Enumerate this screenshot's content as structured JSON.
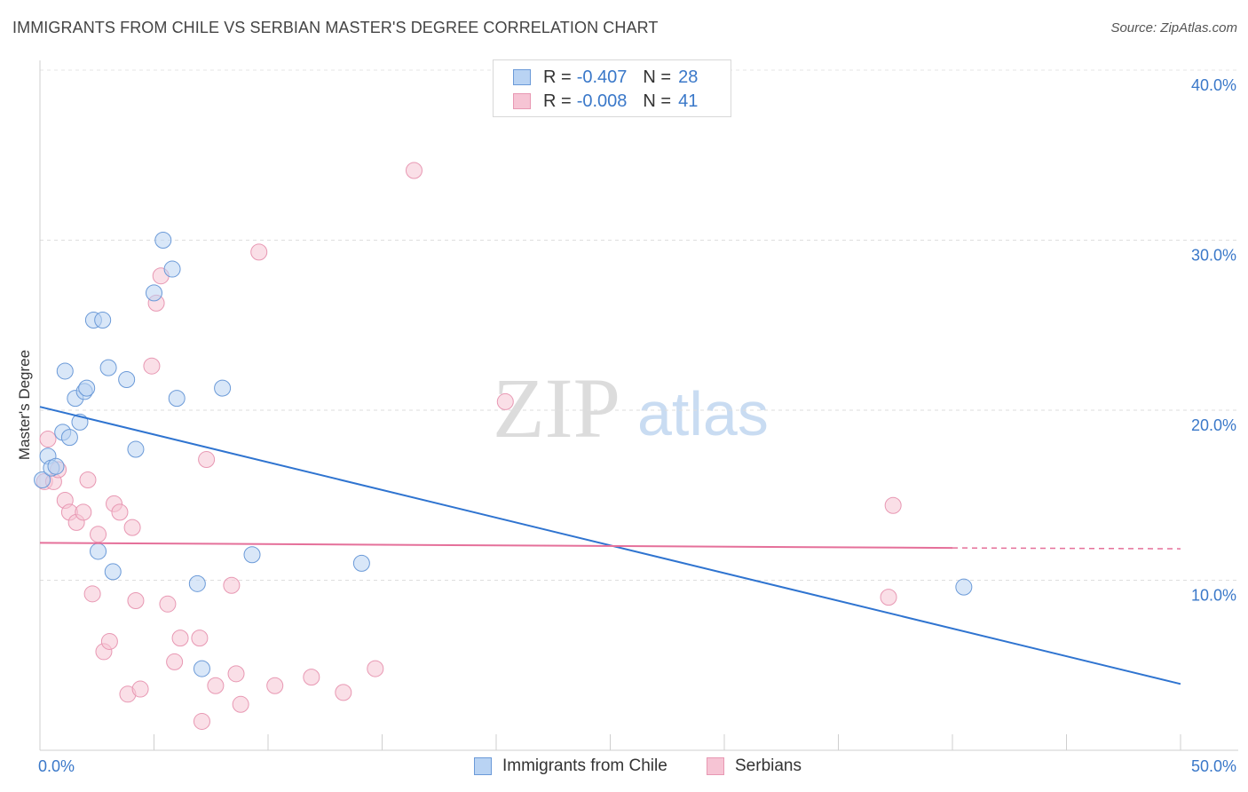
{
  "title": "IMMIGRANTS FROM CHILE VS SERBIAN MASTER'S DEGREE CORRELATION CHART",
  "source": "Source: ZipAtlas.com",
  "watermark_zip": "ZIP",
  "watermark_atlas": "atlas",
  "colors": {
    "blue": "#2f74d0",
    "blue_fill": "#b9d3f3",
    "pink": "#e5709a",
    "pink_fill": "#f6c4d4",
    "tick_text": "#3a78c9"
  },
  "legend": {
    "rows": [
      {
        "r_label": "R =",
        "r_value": "-0.407",
        "n_label": "N =",
        "n_value": "28"
      },
      {
        "r_label": "R =",
        "r_value": "-0.008",
        "n_label": "N =",
        "n_value": "41"
      }
    ]
  },
  "bottom_legend": {
    "chile": "Immigrants from Chile",
    "serbians": "Serbians"
  },
  "chart_data": {
    "type": "scatter",
    "title": "IMMIGRANTS FROM CHILE VS SERBIAN MASTER'S DEGREE CORRELATION CHART",
    "xlabel": "",
    "ylabel": "Master's Degree",
    "xlim": [
      0,
      50
    ],
    "ylim": [
      0,
      42
    ],
    "x_tick_labels": [
      "0.0%",
      "50.0%"
    ],
    "y_ticks": [
      10,
      20,
      30,
      40
    ],
    "y_tick_labels": [
      "10.0%",
      "20.0%",
      "30.0%",
      "40.0%"
    ],
    "grid": true,
    "series": [
      {
        "name": "Immigrants from Chile",
        "points": [
          [
            0.1,
            15.9
          ],
          [
            0.35,
            17.3
          ],
          [
            0.5,
            16.6
          ],
          [
            0.7,
            16.7
          ],
          [
            1.0,
            18.7
          ],
          [
            1.1,
            22.3
          ],
          [
            1.3,
            18.4
          ],
          [
            1.55,
            20.7
          ],
          [
            1.75,
            19.3
          ],
          [
            1.95,
            21.1
          ],
          [
            2.05,
            21.3
          ],
          [
            2.35,
            25.3
          ],
          [
            2.55,
            11.7
          ],
          [
            2.75,
            25.3
          ],
          [
            3.0,
            22.5
          ],
          [
            3.2,
            10.5
          ],
          [
            3.8,
            21.8
          ],
          [
            4.2,
            17.7
          ],
          [
            5.0,
            26.9
          ],
          [
            5.4,
            30.0
          ],
          [
            5.8,
            28.3
          ],
          [
            6.0,
            20.7
          ],
          [
            6.9,
            9.8
          ],
          [
            8.0,
            21.3
          ],
          [
            9.3,
            11.5
          ],
          [
            7.1,
            4.8
          ],
          [
            14.1,
            11.0
          ],
          [
            40.5,
            9.6
          ]
        ],
        "trend": {
          "x": [
            0,
            50
          ],
          "y": [
            20.2,
            3.9
          ]
        }
      },
      {
        "name": "Serbians",
        "points": [
          [
            0.2,
            15.8
          ],
          [
            0.35,
            18.3
          ],
          [
            0.6,
            15.8
          ],
          [
            0.8,
            16.5
          ],
          [
            1.1,
            14.7
          ],
          [
            1.3,
            14.0
          ],
          [
            1.6,
            13.4
          ],
          [
            1.9,
            14.0
          ],
          [
            2.1,
            15.9
          ],
          [
            2.3,
            9.2
          ],
          [
            2.55,
            12.7
          ],
          [
            2.8,
            5.8
          ],
          [
            3.05,
            6.4
          ],
          [
            3.25,
            14.5
          ],
          [
            3.5,
            14.0
          ],
          [
            3.85,
            3.3
          ],
          [
            4.05,
            13.1
          ],
          [
            4.2,
            8.8
          ],
          [
            4.4,
            3.6
          ],
          [
            4.9,
            22.6
          ],
          [
            5.1,
            26.3
          ],
          [
            5.3,
            27.9
          ],
          [
            5.6,
            8.6
          ],
          [
            5.9,
            5.2
          ],
          [
            6.15,
            6.6
          ],
          [
            7.0,
            6.6
          ],
          [
            7.1,
            1.7
          ],
          [
            7.3,
            17.1
          ],
          [
            7.7,
            3.8
          ],
          [
            8.4,
            9.7
          ],
          [
            8.6,
            4.5
          ],
          [
            8.8,
            2.7
          ],
          [
            9.6,
            29.3
          ],
          [
            10.3,
            3.8
          ],
          [
            11.9,
            4.3
          ],
          [
            13.3,
            3.4
          ],
          [
            14.7,
            4.8
          ],
          [
            16.4,
            34.1
          ],
          [
            20.4,
            20.5
          ],
          [
            37.2,
            9.0
          ],
          [
            37.4,
            14.4
          ]
        ],
        "trend": {
          "x": [
            0,
            40
          ],
          "y": [
            12.2,
            11.9
          ]
        },
        "trend_dashed": {
          "x": [
            40,
            50
          ],
          "y": [
            11.9,
            11.85
          ]
        }
      }
    ]
  }
}
